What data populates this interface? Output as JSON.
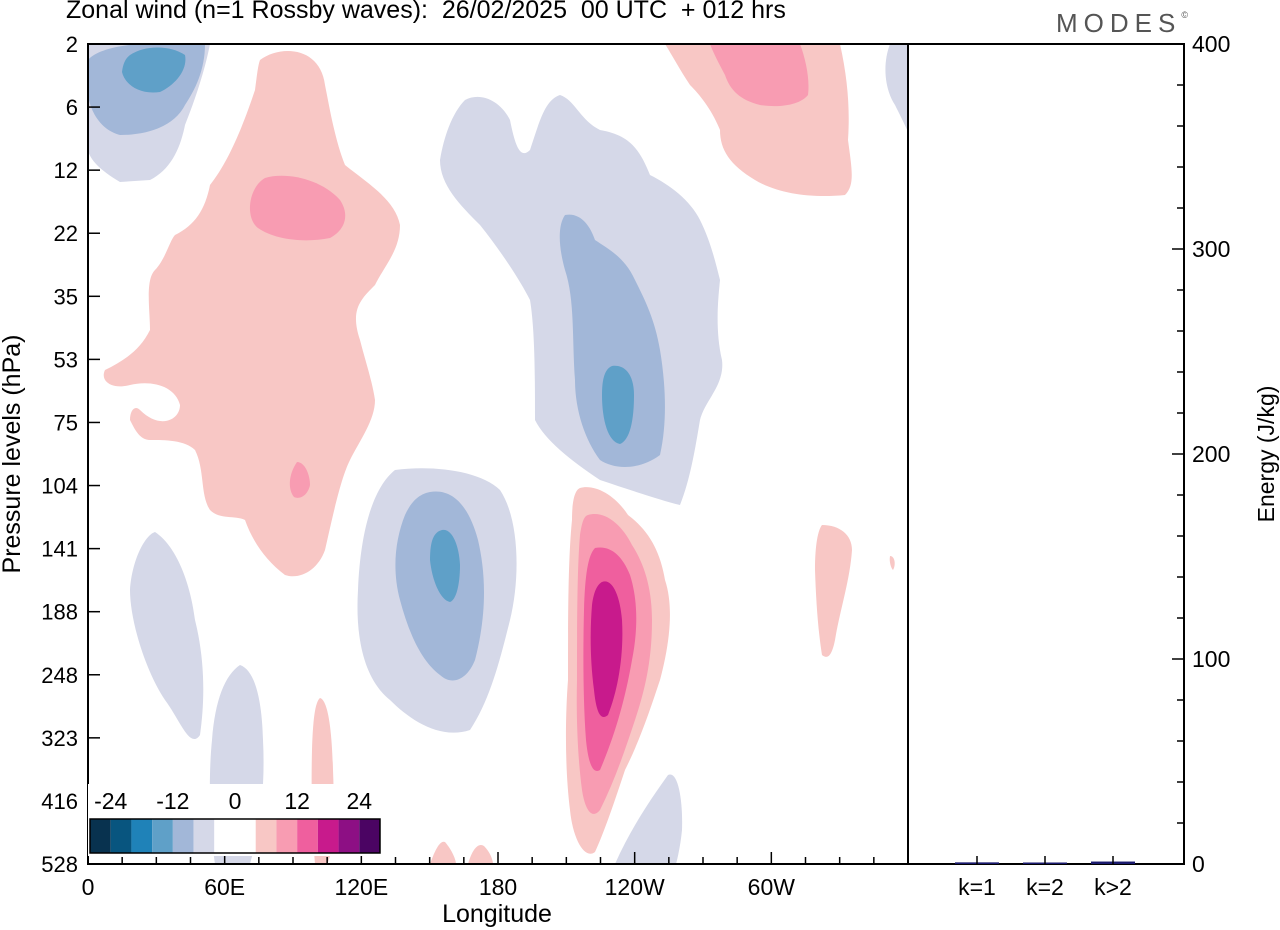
{
  "header": {
    "title": "Zonal wind (n=1 Rossby waves):  26/02/2025  00 UTC  + 012 hrs",
    "logo_text": "MODES"
  },
  "chart_data": [
    {
      "type": "heatmap",
      "subtype": "filled contour (longitude-pressure cross-section)",
      "title": "Zonal wind (n=1 Rossby waves):  26/02/2025  00 UTC  + 012 hrs",
      "xlabel": "Longitude",
      "ylabel": "Pressure levels (hPa)",
      "x_ticks": [
        "0",
        "60E",
        "120E",
        "180",
        "120W",
        "60W"
      ],
      "x_tick_degrees": [
        0,
        60,
        120,
        180,
        240,
        300
      ],
      "xlim": [
        0,
        360
      ],
      "y_ticks": [
        "2",
        "6",
        "12",
        "22",
        "35",
        "53",
        "75",
        "104",
        "141",
        "188",
        "248",
        "323",
        "416",
        "528"
      ],
      "y_scale": "model levels (log-like, top = 2 hPa, bottom = 528 hPa)",
      "colorbar": {
        "tick_labels": [
          "-24",
          "-12",
          "0",
          "12",
          "24"
        ],
        "colors": [
          "#08324f",
          "#08557f",
          "#1f82b8",
          "#5fa0c8",
          "#a2b7d8",
          "#d5d8e8",
          "#ffffff",
          "#ffffff",
          "#f8c7c5",
          "#f89cb2",
          "#ef5f9e",
          "#c81a8c",
          "#8d0f84",
          "#4b0463"
        ],
        "placement": "bottom-left inset"
      },
      "features": [
        {
          "sign": "negative",
          "peak": -12,
          "lon": 25,
          "levels": "2-12"
        },
        {
          "sign": "positive",
          "peak": 12,
          "lon": 90,
          "levels": "6-160"
        },
        {
          "sign": "negative",
          "peak": -12,
          "lon": 230,
          "levels": "6-120"
        },
        {
          "sign": "negative",
          "peak": -12,
          "lon": 155,
          "levels": "110-330"
        },
        {
          "sign": "positive",
          "peak": 24,
          "lon": 230,
          "levels": "105-480"
        },
        {
          "sign": "positive",
          "peak": 12,
          "lon": 283,
          "levels": "2-15"
        }
      ]
    },
    {
      "type": "bar",
      "ylabel": "Energy (J/kg)",
      "categories": [
        "k=1",
        "k=2",
        "k>2"
      ],
      "values": [
        0.8,
        0.5,
        1.2
      ],
      "ylim": [
        0,
        400
      ],
      "y_ticks": [
        "0",
        "100",
        "200",
        "300",
        "400"
      ],
      "bar_color": "#1a1a6e"
    }
  ]
}
